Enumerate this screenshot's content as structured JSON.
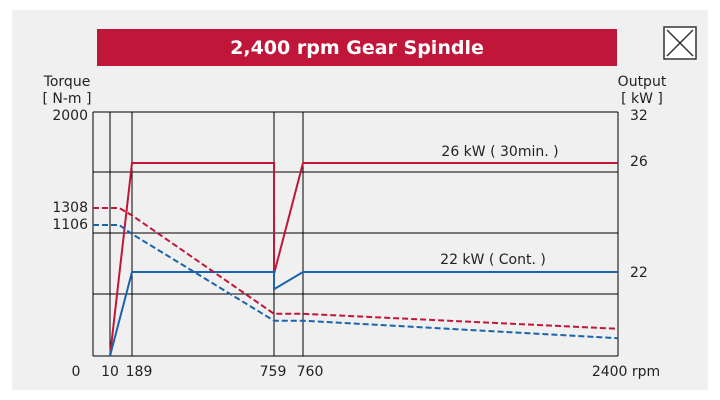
{
  "close_icon": "close-icon",
  "chart_data": {
    "type": "line",
    "title": "2,400 rpm Gear Spindle",
    "xlabel": "rpm",
    "ylabel_left": [
      "Torque",
      "[ N-m ]"
    ],
    "ylabel_right": [
      "Output",
      "[ kW ]"
    ],
    "xlim": [
      0,
      2400
    ],
    "ylim_left": [
      0,
      2000
    ],
    "ylim_right": [
      0,
      32
    ],
    "x_ticks": [
      "0",
      "10",
      "189",
      "759",
      "760",
      "2400 rpm"
    ],
    "y_left_ticks": [
      "2000",
      "1308",
      "1106"
    ],
    "y_right_ticks": [
      "32",
      "26",
      "22"
    ],
    "grid": true,
    "annotations": [
      "26 kW ( 30min. )",
      "22 kW ( Cont. )"
    ],
    "colors": {
      "output_30min": "#c0163a",
      "output_cont": "#1a63ad",
      "grid": "#000000"
    },
    "series": [
      {
        "axis": "right",
        "style": "solid",
        "color": "#c0163a",
        "x": [
          10,
          189,
          759,
          759,
          860,
          2400
        ],
        "y": [
          0,
          26,
          26,
          21.5,
          26,
          26
        ]
      },
      {
        "axis": "right",
        "style": "solid",
        "color": "#1a63ad",
        "x": [
          10,
          189,
          759,
          759,
          860,
          2400
        ],
        "y": [
          0,
          22,
          22,
          17.5,
          22,
          22
        ]
      },
      {
        "axis": "left",
        "style": "dashed",
        "color": "#c0163a",
        "x": [
          0,
          85,
          189,
          759,
          860,
          2400
        ],
        "y": [
          1308,
          1308,
          1220,
          356,
          356,
          230
        ]
      },
      {
        "axis": "left",
        "style": "dashed",
        "color": "#1a63ad",
        "x": [
          0,
          85,
          189,
          759,
          860,
          2400
        ],
        "y": [
          1106,
          1106,
          1030,
          298,
          298,
          150
        ]
      }
    ]
  }
}
